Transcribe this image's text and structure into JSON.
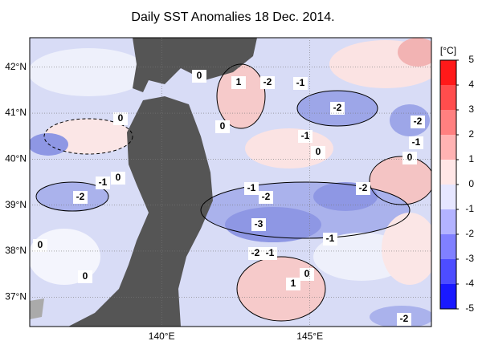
{
  "map": {
    "title": "Daily SST Anomalies 18 Dec. 2014.",
    "lat_ticks": [
      {
        "value": 42,
        "label": "42°N"
      },
      {
        "value": 41,
        "label": "41°N"
      },
      {
        "value": 40,
        "label": "40°N"
      },
      {
        "value": 39,
        "label": "39°N"
      },
      {
        "value": 38,
        "label": "38°N"
      },
      {
        "value": 37,
        "label": "37°N"
      }
    ],
    "lon_ticks": [
      {
        "value": 140,
        "label": "140°E"
      },
      {
        "value": 145,
        "label": "145°E"
      }
    ],
    "colorbar": {
      "unit": "[°C]",
      "ticks": [
        5,
        4,
        3,
        2,
        1,
        0,
        -1,
        -2,
        -3,
        -4,
        -5
      ]
    },
    "contour_labels": [
      "0",
      "1",
      "-2",
      "-1",
      "-2",
      "-2",
      "-1",
      "0",
      "0",
      "-1",
      "0",
      "0",
      "-1",
      "0",
      "-2",
      "-1",
      "-2",
      "-2",
      "-3",
      "-1",
      "0",
      "-2",
      "-1",
      "0",
      "0",
      "1",
      "-2"
    ]
  }
}
